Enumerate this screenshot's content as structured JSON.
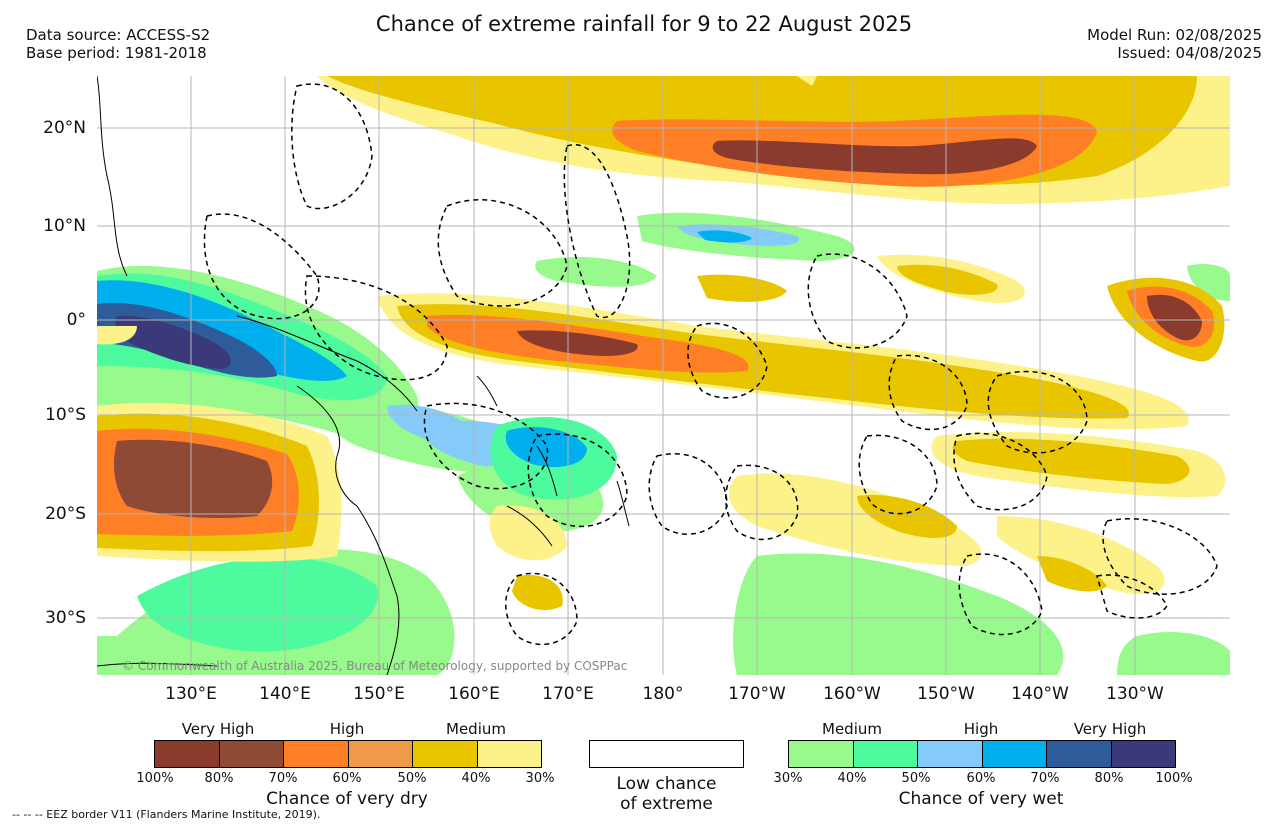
{
  "header": {
    "title": "Chance of extreme rainfall for 9 to 22 August 2025",
    "data_source": "Data source: ACCESS-S2",
    "base_period": "Base period: 1981-2018",
    "model_run": "Model Run: 02/08/2025",
    "issued": "Issued: 04/08/2025"
  },
  "axes": {
    "lat_ticks": [
      "20°N",
      "10°N",
      "0°",
      "10°S",
      "20°S",
      "30°S"
    ],
    "lon_ticks": [
      "130°E",
      "140°E",
      "150°E",
      "160°E",
      "170°E",
      "180°",
      "170°W",
      "160°W",
      "150°W",
      "140°W",
      "130°W"
    ]
  },
  "map": {
    "copyright": "© Commonwealth of Australia 2025, Bureau of Meteorology, supported by COSPPac"
  },
  "legend": {
    "dry": {
      "headers": [
        "Very High",
        "High",
        "Medium"
      ],
      "colors": [
        "#8b3a2e",
        "#8f4a36",
        "#ff7f26",
        "#ee9a48",
        "#e9c500",
        "#fdf28a"
      ],
      "ticks": [
        "100%",
        "80%",
        "70%",
        "60%",
        "50%",
        "40%",
        "30%"
      ],
      "label": "Chance of very dry"
    },
    "low": {
      "label_line1": "Low chance",
      "label_line2": "of extreme"
    },
    "wet": {
      "headers": [
        "Medium",
        "High",
        "Very High"
      ],
      "colors": [
        "#98fa8c",
        "#4efa9e",
        "#84cbfa",
        "#00b0ee",
        "#2e5c9a",
        "#3a3a7a"
      ],
      "ticks": [
        "30%",
        "40%",
        "50%",
        "60%",
        "70%",
        "80%",
        "100%"
      ],
      "label": "Chance of very wet"
    },
    "eez_note": "-- -- -- EEZ border V11 (Flanders Marine Institute, 2019)."
  }
}
